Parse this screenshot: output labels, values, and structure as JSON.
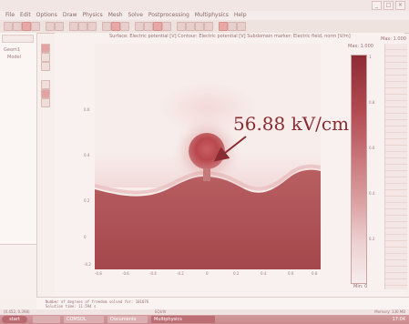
{
  "window": {
    "title": "",
    "controls": [
      "_",
      "□",
      "×"
    ]
  },
  "menu": {
    "items": [
      "File",
      "Edit",
      "Options",
      "Draw",
      "Physics",
      "Mesh",
      "Solve",
      "Postprocessing",
      "Multiphysics",
      "Help"
    ]
  },
  "model_tree": {
    "header": "",
    "items": [
      "Geom1",
      "Model"
    ]
  },
  "plot": {
    "title": "Surface: Electric potential [V]  Contour: Electric potential [V]  Subdomain marker: Electric field, norm [V/m]",
    "max_label": "Max: 1.000",
    "max_label_right": "Max: 1.000",
    "min_label": "Min: 0",
    "y_ticks": [
      "0.6",
      "0.4",
      "0.2",
      "0",
      "-0.2"
    ],
    "x_ticks": [
      "-0.8",
      "-0.6",
      "-0.4",
      "-0.2",
      "0",
      "0.2",
      "0.4",
      "0.6",
      "0.8"
    ],
    "colorbar_ticks": [
      "1",
      "0.8",
      "0.6",
      "0.4",
      "0.2"
    ],
    "annotation": "56.88 kV/cm",
    "colors": {
      "sphere": "#b8474d",
      "ground": "#b05a5d",
      "annotation": "#8a2b32"
    }
  },
  "console": {
    "line1": "Number of degrees of freedom solved for: 101076",
    "line2": "Solution time: 11.594 s"
  },
  "status": {
    "coords": "(0.452, 0.398)",
    "mode": "EQUIV",
    "memory": "Memory: 130 MB"
  },
  "taskbar": {
    "start": "start",
    "tasks": [
      "",
      "COMSOL",
      "Documents",
      "Multiphysics"
    ],
    "clock": "17:04"
  }
}
